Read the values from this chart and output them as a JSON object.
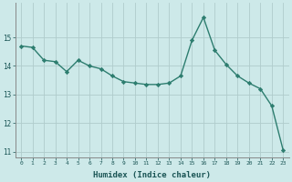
{
  "x": [
    0,
    1,
    2,
    3,
    4,
    5,
    6,
    7,
    8,
    9,
    10,
    11,
    12,
    13,
    14,
    15,
    16,
    17,
    18,
    19,
    20,
    21,
    22,
    23
  ],
  "y": [
    14.7,
    14.65,
    14.2,
    14.15,
    13.8,
    14.2,
    14.0,
    13.9,
    13.65,
    13.45,
    13.4,
    13.35,
    13.35,
    13.4,
    13.65,
    14.9,
    15.7,
    14.55,
    14.05,
    13.65,
    13.4,
    13.2,
    12.6,
    11.05
  ],
  "xlabel": "Humidex (Indice chaleur)",
  "xlim": [
    -0.5,
    23.5
  ],
  "ylim": [
    10.8,
    16.2
  ],
  "yticks": [
    11,
    12,
    13,
    14,
    15
  ],
  "xticks": [
    0,
    1,
    2,
    3,
    4,
    5,
    6,
    7,
    8,
    9,
    10,
    11,
    12,
    13,
    14,
    15,
    16,
    17,
    18,
    19,
    20,
    21,
    22,
    23
  ],
  "xtick_labels": [
    "0",
    "1",
    "2",
    "3",
    "4",
    "5",
    "6",
    "7",
    "8",
    "9",
    "10",
    "11",
    "12",
    "13",
    "14",
    "15",
    "16",
    "17",
    "18",
    "19",
    "20",
    "21",
    "22",
    "23"
  ],
  "line_color": "#2d7d6f",
  "marker": "D",
  "marker_size": 2.2,
  "bg_color": "#cde9e9",
  "grid_color": "#b0cccc"
}
